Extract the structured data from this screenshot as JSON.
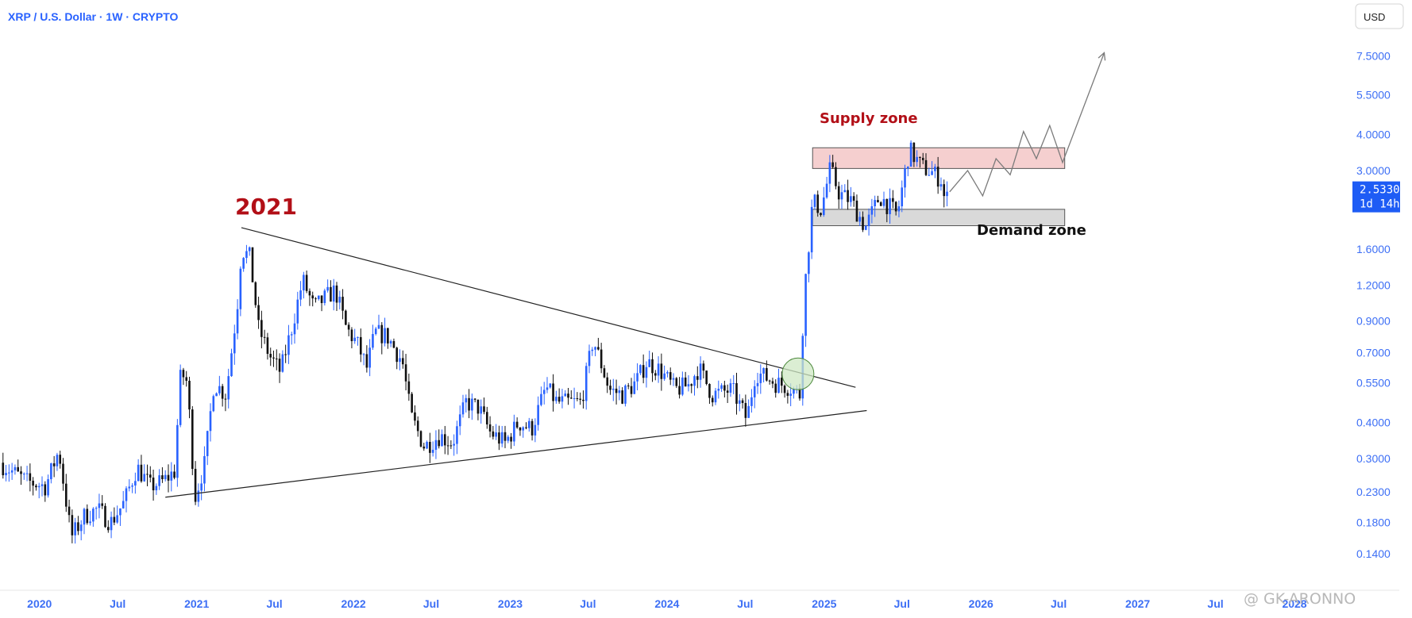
{
  "header": {
    "title": "XRP / U.S. Dollar · 1W · CRYPTO",
    "currency_button": "USD"
  },
  "price_label": {
    "price": "2.5330",
    "countdown": "1d 14h",
    "color": "#1e5cf5"
  },
  "watermark": "@ GK-ARONNO",
  "annotations": {
    "supply_label": "Supply zone",
    "demand_label": "Demand zone",
    "year_label": "2021"
  },
  "colors": {
    "up": "#2962ff",
    "down": "#111111",
    "supply_fill": "#f5cfcf",
    "demand_fill": "#d9d9d9",
    "circle_fill": "#cfe8c4",
    "axis_text": "#3d6ff5"
  },
  "chart_data": {
    "type": "candlestick",
    "y_scale": "log",
    "ylim": [
      0.115,
      8.6
    ],
    "x_range": [
      "2019-10-01",
      "2028-09-01"
    ],
    "y_ticks": [
      "7.5000",
      "5.5000",
      "4.0000",
      "3.0000",
      "1.6000",
      "1.2000",
      "0.9000",
      "0.7000",
      "0.5500",
      "0.4000",
      "0.3000",
      "0.2300",
      "0.1800",
      "0.1400"
    ],
    "x_ticks": [
      {
        "label": "2020",
        "date": "2020-01-01"
      },
      {
        "label": "Jul",
        "date": "2020-07-01"
      },
      {
        "label": "2021",
        "date": "2021-01-01"
      },
      {
        "label": "Jul",
        "date": "2021-07-01"
      },
      {
        "label": "2022",
        "date": "2022-01-01"
      },
      {
        "label": "Jul",
        "date": "2022-07-01"
      },
      {
        "label": "2023",
        "date": "2023-01-01"
      },
      {
        "label": "Jul",
        "date": "2023-07-01"
      },
      {
        "label": "2024",
        "date": "2024-01-01"
      },
      {
        "label": "Jul",
        "date": "2024-07-01"
      },
      {
        "label": "2025",
        "date": "2025-01-01"
      },
      {
        "label": "Jul",
        "date": "2025-07-01"
      },
      {
        "label": "2026",
        "date": "2026-01-01"
      },
      {
        "label": "Jul",
        "date": "2026-07-01"
      },
      {
        "label": "2027",
        "date": "2027-01-01"
      },
      {
        "label": "Jul",
        "date": "2027-07-01"
      },
      {
        "label": "2028",
        "date": "2028-01-01"
      }
    ],
    "price_path": [
      [
        "2019-10-01",
        0.29
      ],
      [
        "2019-12-01",
        0.25
      ],
      [
        "2020-01-15",
        0.24
      ],
      [
        "2020-02-15",
        0.32
      ],
      [
        "2020-03-15",
        0.16
      ],
      [
        "2020-04-15",
        0.19
      ],
      [
        "2020-05-15",
        0.2
      ],
      [
        "2020-06-15",
        0.18
      ],
      [
        "2020-07-15",
        0.21
      ],
      [
        "2020-08-15",
        0.28
      ],
      [
        "2020-09-15",
        0.24
      ],
      [
        "2020-10-15",
        0.25
      ],
      [
        "2020-11-10",
        0.27
      ],
      [
        "2020-11-25",
        0.6
      ],
      [
        "2020-12-10",
        0.55
      ],
      [
        "2020-12-28",
        0.22
      ],
      [
        "2021-01-20",
        0.29
      ],
      [
        "2021-02-10",
        0.55
      ],
      [
        "2021-03-10",
        0.5
      ],
      [
        "2021-04-05",
        1.0
      ],
      [
        "2021-04-15",
        1.6
      ],
      [
        "2021-05-05",
        1.5
      ],
      [
        "2021-05-25",
        0.85
      ],
      [
        "2021-06-20",
        0.68
      ],
      [
        "2021-07-15",
        0.6
      ],
      [
        "2021-08-10",
        0.85
      ],
      [
        "2021-09-05",
        1.25
      ],
      [
        "2021-10-01",
        1.0
      ],
      [
        "2021-11-01",
        1.1
      ],
      [
        "2021-11-20",
        1.15
      ],
      [
        "2021-12-15",
        0.85
      ],
      [
        "2022-01-10",
        0.75
      ],
      [
        "2022-02-01",
        0.62
      ],
      [
        "2022-02-20",
        0.82
      ],
      [
        "2022-03-20",
        0.8
      ],
      [
        "2022-04-25",
        0.65
      ],
      [
        "2022-05-15",
        0.42
      ],
      [
        "2022-06-15",
        0.33
      ],
      [
        "2022-07-20",
        0.36
      ],
      [
        "2022-08-20",
        0.34
      ],
      [
        "2022-09-20",
        0.47
      ],
      [
        "2022-10-20",
        0.45
      ],
      [
        "2022-11-15",
        0.37
      ],
      [
        "2022-12-20",
        0.34
      ],
      [
        "2023-01-20",
        0.4
      ],
      [
        "2023-02-20",
        0.38
      ],
      [
        "2023-03-25",
        0.53
      ],
      [
        "2023-04-20",
        0.47
      ],
      [
        "2023-06-15",
        0.47
      ],
      [
        "2023-07-13",
        0.78
      ],
      [
        "2023-08-20",
        0.52
      ],
      [
        "2023-09-20",
        0.5
      ],
      [
        "2023-10-20",
        0.55
      ],
      [
        "2023-11-15",
        0.65
      ],
      [
        "2023-12-15",
        0.61
      ],
      [
        "2024-01-20",
        0.52
      ],
      [
        "2024-02-20",
        0.54
      ],
      [
        "2024-03-15",
        0.62
      ],
      [
        "2024-04-15",
        0.5
      ],
      [
        "2024-06-01",
        0.52
      ],
      [
        "2024-07-05",
        0.41
      ],
      [
        "2024-07-25",
        0.6
      ],
      [
        "2024-09-10",
        0.55
      ],
      [
        "2024-10-15",
        0.53
      ],
      [
        "2024-11-05",
        0.5
      ],
      [
        "2024-11-15",
        1.1
      ],
      [
        "2024-12-05",
        2.35
      ],
      [
        "2024-12-25",
        2.2
      ],
      [
        "2025-01-15",
        3.05
      ],
      [
        "2025-02-05",
        2.5
      ],
      [
        "2025-03-05",
        2.35
      ],
      [
        "2025-04-07",
        1.9
      ],
      [
        "2025-05-10",
        2.45
      ],
      [
        "2025-06-20",
        2.1
      ],
      [
        "2025-07-18",
        3.55
      ],
      [
        "2025-08-15",
        3.1
      ],
      [
        "2025-09-10",
        2.95
      ],
      [
        "2025-09-30",
        2.8
      ],
      [
        "2025-10-10",
        2.3
      ],
      [
        "2025-10-20",
        2.53
      ]
    ],
    "supply_zone": {
      "low": 3.05,
      "high": 3.6,
      "start": "2024-12-05",
      "end": "2026-07-15",
      "label": "Supply zone"
    },
    "demand_zone": {
      "low": 1.93,
      "high": 2.2,
      "start": "2024-12-05",
      "end": "2026-07-15",
      "label": "Demand zone"
    },
    "trendlines": [
      {
        "name": "upper-trendline",
        "from": [
          "2021-04-15",
          1.9
        ],
        "to": [
          "2025-03-15",
          0.53
        ]
      },
      {
        "name": "lower-trendline",
        "from": [
          "2020-10-20",
          0.22
        ],
        "to": [
          "2025-04-10",
          0.44
        ]
      }
    ],
    "breakout_circle": {
      "date": "2024-11-01",
      "price": 0.59
    },
    "projection": [
      [
        "2025-10-20",
        2.53
      ],
      [
        "2025-12-01",
        3.0
      ],
      [
        "2026-01-05",
        2.45
      ],
      [
        "2026-02-05",
        3.3
      ],
      [
        "2026-03-10",
        2.9
      ],
      [
        "2026-04-10",
        4.1
      ],
      [
        "2026-05-10",
        3.3
      ],
      [
        "2026-06-10",
        4.3
      ],
      [
        "2026-07-10",
        3.2
      ],
      [
        "2026-10-15",
        7.7
      ]
    ],
    "last_price": 2.533
  }
}
